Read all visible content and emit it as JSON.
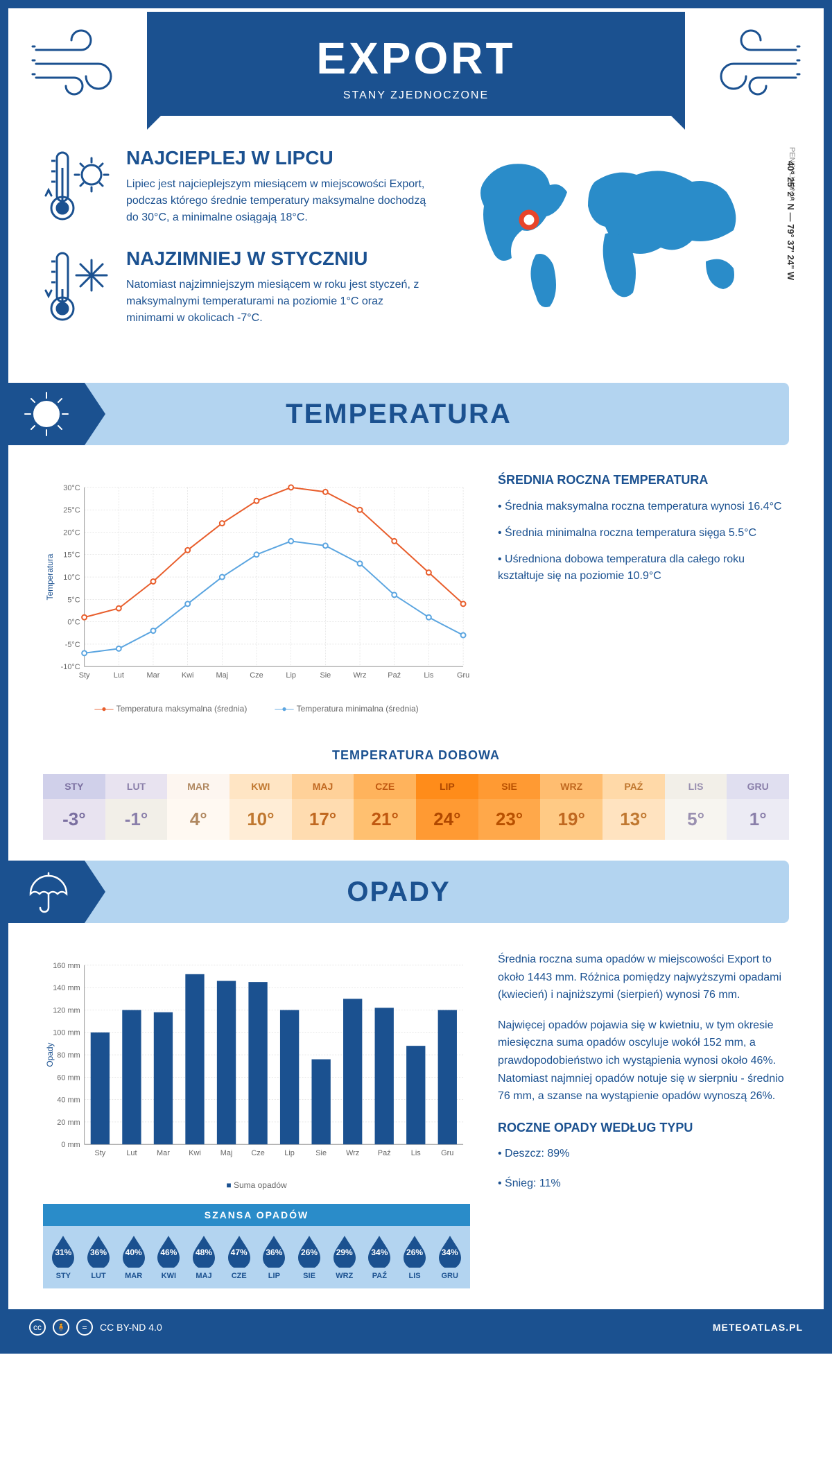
{
  "header": {
    "title": "EXPORT",
    "subtitle": "STANY ZJEDNOCZONE"
  },
  "intro": {
    "hot": {
      "title": "NAJCIEPLEJ W LIPCU",
      "text": "Lipiec jest najcieplejszym miesiącem w miejscowości Export, podczas którego średnie temperatury maksymalne dochodzą do 30°C, a minimalne osiągają 18°C."
    },
    "cold": {
      "title": "NAJZIMNIEJ W STYCZNIU",
      "text": "Natomiast najzimniejszym miesiącem w roku jest styczeń, z maksymalnymi temperaturami na poziomie 1°C oraz minimami w okolicach -7°C."
    },
    "state": "PENSYLWANIA",
    "coords": "40° 25' 2\" N — 79° 37' 24\" W"
  },
  "temp_section": {
    "title": "TEMPERATURA",
    "chart": {
      "months": [
        "Sty",
        "Lut",
        "Mar",
        "Kwi",
        "Maj",
        "Cze",
        "Lip",
        "Sie",
        "Wrz",
        "Paź",
        "Lis",
        "Gru"
      ],
      "max_series": [
        1,
        3,
        9,
        16,
        22,
        27,
        30,
        29,
        25,
        18,
        11,
        4
      ],
      "min_series": [
        -7,
        -6,
        -2,
        4,
        10,
        15,
        18,
        17,
        13,
        6,
        1,
        -3
      ],
      "max_color": "#e85d2b",
      "min_color": "#5ba5e0",
      "grid_color": "#d0d0d0",
      "ylim": [
        -10,
        30
      ],
      "ytick_step": 5,
      "y_label": "Temperatura",
      "legend_max": "Temperatura maksymalna (średnia)",
      "legend_min": "Temperatura minimalna (średnia)"
    },
    "info": {
      "heading": "ŚREDNIA ROCZNA TEMPERATURA",
      "bullets": [
        "• Średnia maksymalna roczna temperatura wynosi 16.4°C",
        "• Średnia minimalna roczna temperatura sięga 5.5°C",
        "• Uśredniona dobowa temperatura dla całego roku kształtuje się na poziomie 10.9°C"
      ]
    },
    "daily": {
      "title": "TEMPERATURA DOBOWA",
      "months": [
        "STY",
        "LUT",
        "MAR",
        "KWI",
        "MAJ",
        "CZE",
        "LIP",
        "SIE",
        "WRZ",
        "PAŹ",
        "LIS",
        "GRU"
      ],
      "values": [
        "-3°",
        "-1°",
        "4°",
        "10°",
        "17°",
        "21°",
        "24°",
        "23°",
        "19°",
        "13°",
        "5°",
        "1°"
      ],
      "head_colors": [
        "#d0d0ea",
        "#e8e3f0",
        "#fdf6f0",
        "#ffe5c4",
        "#ffd199",
        "#ffb35c",
        "#ff8c1a",
        "#ff9a33",
        "#ffbd70",
        "#ffd9a8",
        "#f2efe8",
        "#e0dff0"
      ],
      "val_colors": [
        "#e8e3f0",
        "#f2efe8",
        "#fff9f2",
        "#ffedd6",
        "#ffdcb0",
        "#ffc070",
        "#ff9a33",
        "#ffa84a",
        "#ffca85",
        "#ffe3c0",
        "#f7f5f0",
        "#ecebf4"
      ],
      "text_colors": [
        "#7a6fa0",
        "#8a7faa",
        "#b08860",
        "#c07830",
        "#c06820",
        "#c05810",
        "#b04800",
        "#b85000",
        "#c06820",
        "#c07830",
        "#9a90b0",
        "#8a7faa"
      ]
    }
  },
  "precip_section": {
    "title": "OPADY",
    "chart": {
      "months": [
        "Sty",
        "Lut",
        "Mar",
        "Kwi",
        "Maj",
        "Cze",
        "Lip",
        "Sie",
        "Wrz",
        "Paź",
        "Lis",
        "Gru"
      ],
      "values": [
        100,
        120,
        118,
        152,
        146,
        145,
        120,
        76,
        130,
        122,
        88,
        120
      ],
      "bar_color": "#1b5190",
      "grid_color": "#d0d0d0",
      "ylim": [
        0,
        160
      ],
      "ytick_step": 20,
      "y_label": "Opady",
      "legend": "Suma opadów"
    },
    "text1": "Średnia roczna suma opadów w miejscowości Export to około 1443 mm. Różnica pomiędzy najwyższymi opadami (kwiecień) i najniższymi (sierpień) wynosi 76 mm.",
    "text2": "Najwięcej opadów pojawia się w kwietniu, w tym okresie miesięczna suma opadów oscyluje wokół 152 mm, a prawdopodobieństwo ich wystąpienia wynosi około 46%. Natomiast najmniej opadów notuje się w sierpniu - średnio 76 mm, a szanse na wystąpienie opadów wynoszą 26%.",
    "chance": {
      "title": "SZANSA OPADÓW",
      "months": [
        "STY",
        "LUT",
        "MAR",
        "KWI",
        "MAJ",
        "CZE",
        "LIP",
        "SIE",
        "WRZ",
        "PAŹ",
        "LIS",
        "GRU"
      ],
      "values": [
        "31%",
        "36%",
        "40%",
        "46%",
        "48%",
        "47%",
        "36%",
        "26%",
        "29%",
        "34%",
        "26%",
        "34%"
      ],
      "drop_color": "#1b5190",
      "bg_color": "#b3d4f0",
      "head_color": "#2a8cc9"
    },
    "by_type": {
      "heading": "ROCZNE OPADY WEDŁUG TYPU",
      "rain": "• Deszcz: 89%",
      "snow": "• Śnieg: 11%"
    }
  },
  "footer": {
    "license": "CC BY-ND 4.0",
    "site": "METEOATLAS.PL"
  }
}
